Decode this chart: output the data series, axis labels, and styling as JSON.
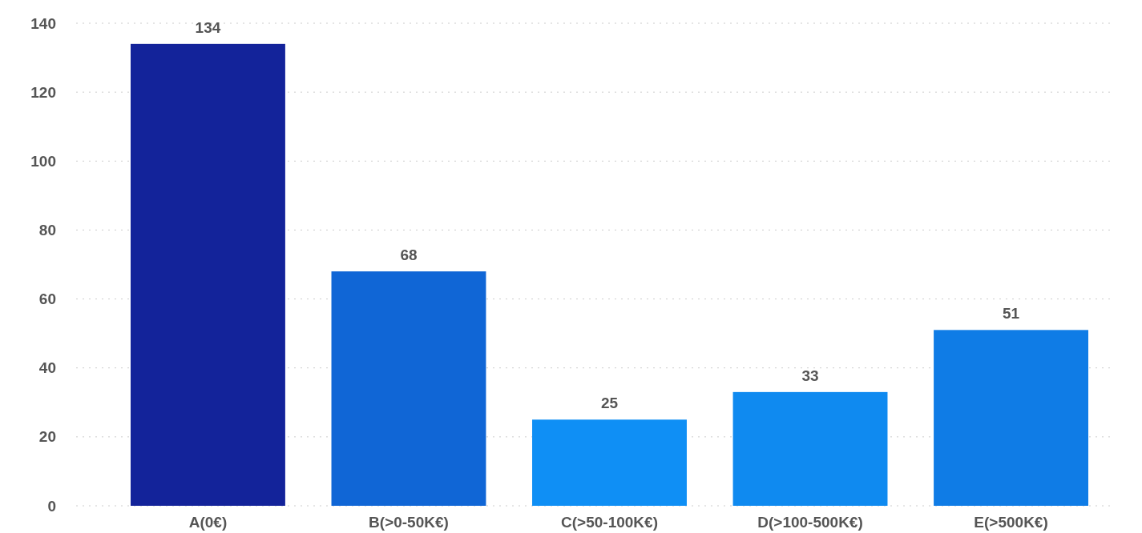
{
  "chart_data": {
    "type": "bar",
    "categories": [
      "A(0€)",
      "B(>0-50K€)",
      "C(>50-100K€)",
      "D(>100-500K€)",
      "E(>500K€)"
    ],
    "values": [
      134,
      68,
      25,
      33,
      51
    ],
    "colors": [
      "#13239a",
      "#1066d6",
      "#0f8ff5",
      "#0f8af0",
      "#0f7ce6"
    ],
    "ylim": [
      0,
      140
    ],
    "yticks": [
      0,
      20,
      40,
      60,
      80,
      100,
      120,
      140
    ],
    "grid": "y",
    "data_labels": true
  }
}
